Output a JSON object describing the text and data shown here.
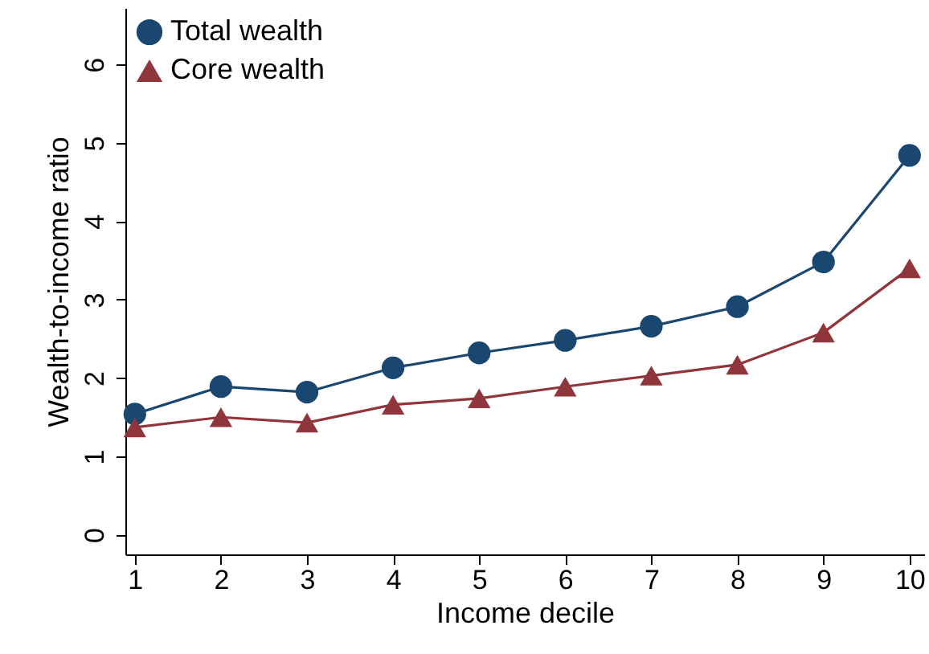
{
  "chart_data": {
    "type": "line",
    "xlabel": "Income decile",
    "ylabel": "Wealth-to-income ratio",
    "x": [
      1,
      2,
      3,
      4,
      5,
      6,
      7,
      8,
      9,
      10
    ],
    "xlim": [
      0.89,
      10.17
    ],
    "xticks": [
      1,
      2,
      3,
      4,
      5,
      6,
      7,
      8,
      9,
      10
    ],
    "ylim": [
      -0.25,
      6.72
    ],
    "yticks": [
      0,
      1,
      2,
      3,
      4,
      5,
      6
    ],
    "grid": false,
    "legend": "top left",
    "line_style": "solid",
    "series": [
      {
        "name": "Total wealth",
        "color": "#1a476f",
        "marker": "circle",
        "values": [
          1.54,
          1.89,
          1.82,
          2.13,
          2.32,
          2.48,
          2.66,
          2.91,
          3.48,
          4.84
        ]
      },
      {
        "name": "Core wealth",
        "color": "#90353b",
        "marker": "triangle",
        "values": [
          1.37,
          1.5,
          1.43,
          1.66,
          1.74,
          1.89,
          2.03,
          2.17,
          2.58,
          3.4
        ]
      }
    ]
  }
}
